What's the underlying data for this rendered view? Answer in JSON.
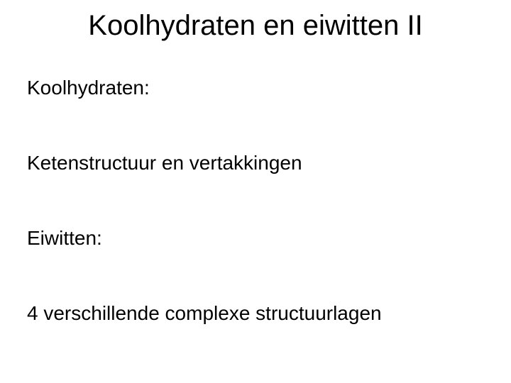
{
  "slide": {
    "title": "Koolhydraten en eiwitten II",
    "lines": [
      "Koolhydraten:",
      "Ketenstructuur en vertakkingen",
      "Eiwitten:",
      "4 verschillende complexe structuurlagen"
    ]
  },
  "style": {
    "background_color": "#ffffff",
    "text_color": "#000000",
    "title_fontsize": 40,
    "body_fontsize": 28,
    "font_family": "Arial"
  }
}
